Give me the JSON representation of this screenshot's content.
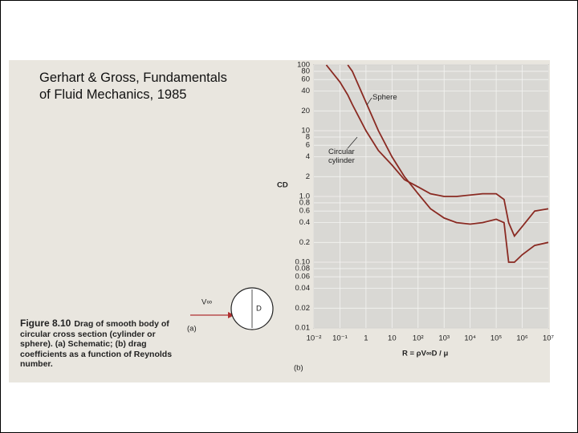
{
  "slide_title": "Gerhart & Gross, Fundamentals of Fluid Mechanics, 1985",
  "caption": {
    "figure_label": "Figure 8.10",
    "text": "Drag of smooth body of circular cross section (cylinder or sphere). (a) Schematic; (b) drag coefficients as a function of Reynolds number."
  },
  "schematic": {
    "panel_label": "(a)",
    "velocity_label": "V∞",
    "diameter_label": "D"
  },
  "chart_data": {
    "type": "line",
    "panel_label": "(b)",
    "x_label": "R = ρV∞D / μ",
    "y_label": "CD",
    "xscale": "log",
    "yscale": "log",
    "grid": true,
    "xlim": [
      0.01,
      10000000
    ],
    "ylim": [
      0.01,
      100
    ],
    "xticks": [
      {
        "value": 0.01,
        "label": "10⁻²"
      },
      {
        "value": 0.1,
        "label": "10⁻¹"
      },
      1,
      10,
      {
        "value": 100,
        "label": "10²"
      },
      {
        "value": 1000,
        "label": "10³"
      },
      {
        "value": 10000,
        "label": "10⁴"
      },
      {
        "value": 100000,
        "label": "10⁵"
      },
      {
        "value": 1000000,
        "label": "10⁶"
      },
      {
        "value": 10000000,
        "label": "10⁷"
      }
    ],
    "yticks": [
      100,
      80,
      60,
      40,
      20,
      10,
      8,
      6,
      4,
      2,
      {
        "value": 1,
        "label": "1.0"
      },
      0.8,
      0.6,
      0.4,
      0.2,
      {
        "value": 0.1,
        "label": "0.10"
      },
      0.08,
      0.06,
      0.04,
      0.02,
      0.01
    ],
    "x": [
      0.03,
      0.1,
      0.2,
      0.3,
      1,
      3,
      10,
      30,
      100,
      300,
      1000,
      3000,
      10000,
      30000,
      100000,
      200000,
      300000,
      500000,
      1000000,
      3000000,
      10000000
    ],
    "series": [
      {
        "name": "Circular cylinder",
        "color": "#8a2a22",
        "values": [
          100,
          55,
          35,
          25,
          10,
          5,
          3,
          1.8,
          1.4,
          1.1,
          1.0,
          1.0,
          1.05,
          1.1,
          1.1,
          0.9,
          0.4,
          0.25,
          0.35,
          0.6,
          0.65
        ]
      },
      {
        "name": "Sphere",
        "color": "#8a2a22",
        "values": [
          null,
          null,
          100,
          80,
          27,
          10,
          4,
          2,
          1.1,
          0.65,
          0.47,
          0.4,
          0.38,
          0.4,
          0.45,
          0.4,
          0.1,
          0.1,
          0.13,
          0.18,
          0.2
        ]
      }
    ]
  }
}
